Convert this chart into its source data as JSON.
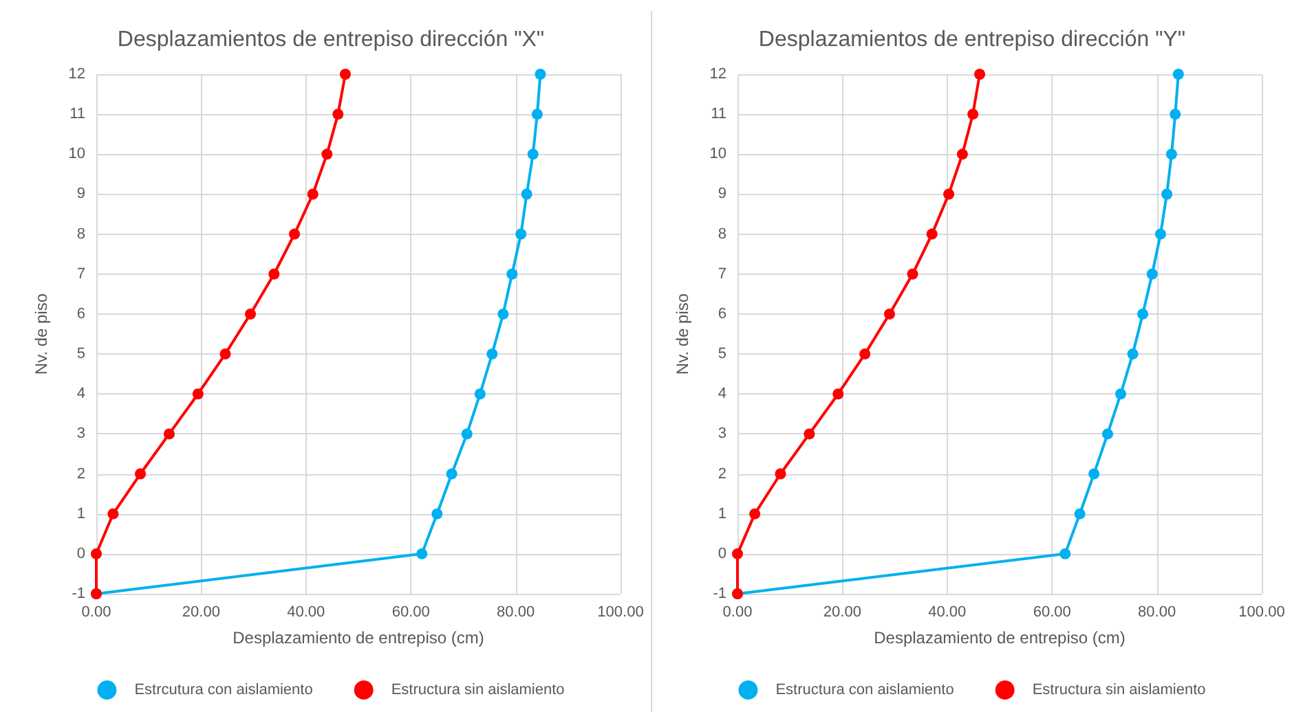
{
  "chart_data": [
    {
      "type": "line",
      "title": "Desplazamientos de entrepiso dirección \"X\"",
      "xlabel": "Desplazamiento de entrepiso (cm)",
      "ylabel": "Nv. de piso",
      "xlim": [
        0,
        100
      ],
      "xticks": [
        {
          "value": 0,
          "label": "0.00"
        },
        {
          "value": 20,
          "label": "20.00"
        },
        {
          "value": 40,
          "label": "40.00"
        },
        {
          "value": 60,
          "label": "60.00"
        },
        {
          "value": 80,
          "label": "80.00"
        },
        {
          "value": 100,
          "label": "100.00"
        }
      ],
      "ylim": [
        -1,
        12
      ],
      "yticks": [
        -1,
        0,
        1,
        2,
        3,
        4,
        5,
        6,
        7,
        8,
        9,
        10,
        11,
        12
      ],
      "grid": true,
      "legend": "bottom",
      "marker": "circle",
      "line_style": "solid",
      "series": [
        {
          "name": "Estrcutura con aislamiento",
          "color": "#00b0f0",
          "x": [
            0,
            62.1,
            65.0,
            67.8,
            70.7,
            73.2,
            75.5,
            77.6,
            79.3,
            81.0,
            82.1,
            83.3,
            84.1,
            84.7
          ],
          "values": [
            -1,
            0,
            1,
            2,
            3,
            4,
            5,
            6,
            7,
            8,
            9,
            10,
            11,
            12
          ]
        },
        {
          "name": "Estructura sin aislamiento",
          "color": "#ff0000",
          "x": [
            0,
            0,
            3.2,
            8.4,
            13.9,
            19.4,
            24.6,
            29.4,
            33.9,
            37.8,
            41.3,
            44.0,
            46.1,
            47.5
          ],
          "values": [
            -1,
            0,
            1,
            2,
            3,
            4,
            5,
            6,
            7,
            8,
            9,
            10,
            11,
            12
          ]
        }
      ]
    },
    {
      "type": "line",
      "title": "Desplazamientos de entrepiso dirección \"Y\"",
      "xlabel": "Desplazamiento de entrepiso (cm)",
      "ylabel": "Nv. de piso",
      "xlim": [
        0,
        100
      ],
      "xticks": [
        {
          "value": 0,
          "label": "0.00"
        },
        {
          "value": 20,
          "label": "20.00"
        },
        {
          "value": 40,
          "label": "40.00"
        },
        {
          "value": 60,
          "label": "60.00"
        },
        {
          "value": 80,
          "label": "80.00"
        },
        {
          "value": 100,
          "label": "100.00"
        }
      ],
      "ylim": [
        -1,
        12
      ],
      "yticks": [
        -1,
        0,
        1,
        2,
        3,
        4,
        5,
        6,
        7,
        8,
        9,
        10,
        11,
        12
      ],
      "grid": true,
      "legend": "bottom",
      "marker": "circle",
      "line_style": "solid",
      "series": [
        {
          "name": "Estructura con aislamiento",
          "color": "#00b0f0",
          "x": [
            0,
            62.5,
            65.3,
            68.0,
            70.6,
            73.1,
            75.4,
            77.3,
            79.1,
            80.7,
            81.9,
            82.8,
            83.5,
            84.1
          ],
          "values": [
            -1,
            0,
            1,
            2,
            3,
            4,
            5,
            6,
            7,
            8,
            9,
            10,
            11,
            12
          ]
        },
        {
          "name": "Estructura sin aislamiento",
          "color": "#ff0000",
          "x": [
            0,
            0,
            3.3,
            8.2,
            13.7,
            19.2,
            24.3,
            29.0,
            33.4,
            37.1,
            40.3,
            42.9,
            44.9,
            46.2
          ],
          "values": [
            -1,
            0,
            1,
            2,
            3,
            4,
            5,
            6,
            7,
            8,
            9,
            10,
            11,
            12
          ]
        }
      ]
    }
  ]
}
